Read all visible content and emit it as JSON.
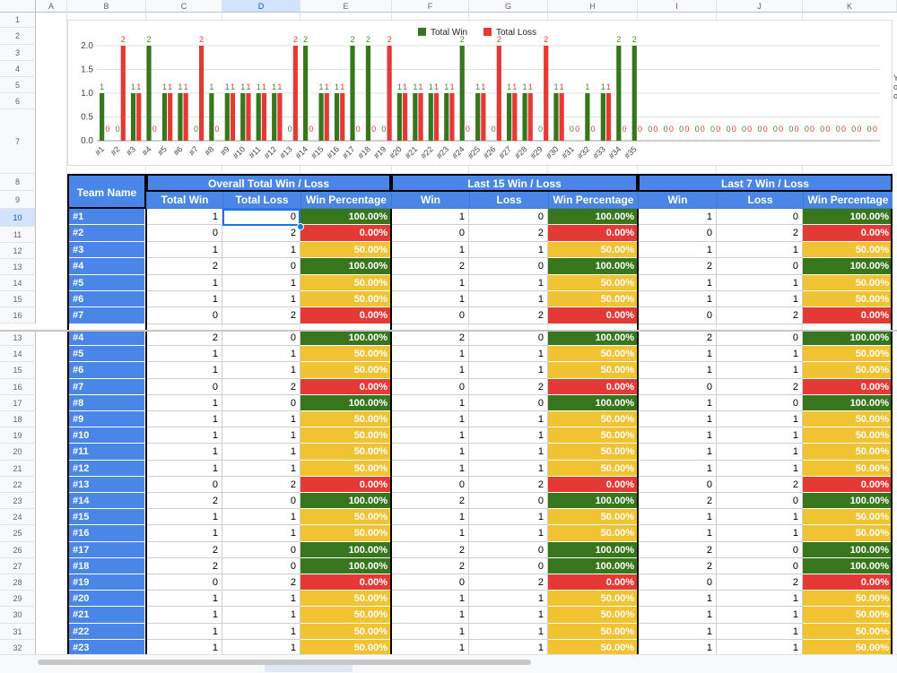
{
  "columns": [
    "A",
    "B",
    "C",
    "D",
    "E",
    "F",
    "G",
    "H",
    "I",
    "J",
    "K"
  ],
  "selected_column": "D",
  "headers": {
    "team_name": "Team Name",
    "group_overall": "Overall Total Win / Loss",
    "group_last15": "Last 15 Win / Loss",
    "group_last7": "Last 7 Win / Loss",
    "total_win": "Total Win",
    "total_loss": "Total Loss",
    "win": "Win",
    "loss": "Loss",
    "win_percentage": "Win Percentage"
  },
  "top_rows": [
    1,
    2,
    3,
    4,
    5,
    6,
    7,
    8,
    9,
    10,
    11,
    12,
    13,
    14,
    15,
    16
  ],
  "bottom_rows": [
    13,
    14,
    15,
    16,
    17,
    18,
    19,
    20,
    21,
    22,
    23,
    24,
    25,
    26,
    27,
    28,
    29,
    30,
    31,
    32
  ],
  "selected_row": 10,
  "colors": {
    "header_blue": "#4a86e8",
    "green": "#38761d",
    "red": "#e53935",
    "yellow": "#f1c232",
    "selection": "#1a73e8"
  },
  "top_rows_data": [
    {
      "team": "#1",
      "w": "1",
      "l": "0",
      "pct": "100.00%",
      "w15": "1",
      "l15": "0",
      "pct15": "100.00%",
      "w7": "1",
      "l7": "0",
      "pct7": "100.00%",
      "s": "g"
    },
    {
      "team": "#2",
      "w": "0",
      "l": "2",
      "pct": "0.00%",
      "w15": "0",
      "l15": "2",
      "pct15": "0.00%",
      "w7": "0",
      "l7": "2",
      "pct7": "0.00%",
      "s": "r"
    },
    {
      "team": "#3",
      "w": "1",
      "l": "1",
      "pct": "50.00%",
      "w15": "1",
      "l15": "1",
      "pct15": "50.00%",
      "w7": "1",
      "l7": "1",
      "pct7": "50.00%",
      "s": "y"
    },
    {
      "team": "#4",
      "w": "2",
      "l": "0",
      "pct": "100.00%",
      "w15": "2",
      "l15": "0",
      "pct15": "100.00%",
      "w7": "2",
      "l7": "0",
      "pct7": "100.00%",
      "s": "g"
    },
    {
      "team": "#5",
      "w": "1",
      "l": "1",
      "pct": "50.00%",
      "w15": "1",
      "l15": "1",
      "pct15": "50.00%",
      "w7": "1",
      "l7": "1",
      "pct7": "50.00%",
      "s": "y"
    },
    {
      "team": "#6",
      "w": "1",
      "l": "1",
      "pct": "50.00%",
      "w15": "1",
      "l15": "1",
      "pct15": "50.00%",
      "w7": "1",
      "l7": "1",
      "pct7": "50.00%",
      "s": "y"
    },
    {
      "team": "#7",
      "w": "0",
      "l": "2",
      "pct": "0.00%",
      "w15": "0",
      "l15": "2",
      "pct15": "0.00%",
      "w7": "0",
      "l7": "2",
      "pct7": "0.00%",
      "s": "r"
    }
  ],
  "bottom_rows_data": [
    {
      "team": "#4",
      "w": "2",
      "l": "0",
      "pct": "100.00%",
      "w15": "2",
      "l15": "0",
      "pct15": "100.00%",
      "w7": "2",
      "l7": "0",
      "pct7": "100.00%",
      "s": "g"
    },
    {
      "team": "#5",
      "w": "1",
      "l": "1",
      "pct": "50.00%",
      "w15": "1",
      "l15": "1",
      "pct15": "50.00%",
      "w7": "1",
      "l7": "1",
      "pct7": "50.00%",
      "s": "y"
    },
    {
      "team": "#6",
      "w": "1",
      "l": "1",
      "pct": "50.00%",
      "w15": "1",
      "l15": "1",
      "pct15": "50.00%",
      "w7": "1",
      "l7": "1",
      "pct7": "50.00%",
      "s": "y"
    },
    {
      "team": "#7",
      "w": "0",
      "l": "2",
      "pct": "0.00%",
      "w15": "0",
      "l15": "2",
      "pct15": "0.00%",
      "w7": "0",
      "l7": "2",
      "pct7": "0.00%",
      "s": "r"
    },
    {
      "team": "#8",
      "w": "1",
      "l": "0",
      "pct": "100.00%",
      "w15": "1",
      "l15": "0",
      "pct15": "100.00%",
      "w7": "1",
      "l7": "0",
      "pct7": "100.00%",
      "s": "g"
    },
    {
      "team": "#9",
      "w": "1",
      "l": "1",
      "pct": "50.00%",
      "w15": "1",
      "l15": "1",
      "pct15": "50.00%",
      "w7": "1",
      "l7": "1",
      "pct7": "50.00%",
      "s": "y"
    },
    {
      "team": "#10",
      "w": "1",
      "l": "1",
      "pct": "50.00%",
      "w15": "1",
      "l15": "1",
      "pct15": "50.00%",
      "w7": "1",
      "l7": "1",
      "pct7": "50.00%",
      "s": "y"
    },
    {
      "team": "#11",
      "w": "1",
      "l": "1",
      "pct": "50.00%",
      "w15": "1",
      "l15": "1",
      "pct15": "50.00%",
      "w7": "1",
      "l7": "1",
      "pct7": "50.00%",
      "s": "y"
    },
    {
      "team": "#12",
      "w": "1",
      "l": "1",
      "pct": "50.00%",
      "w15": "1",
      "l15": "1",
      "pct15": "50.00%",
      "w7": "1",
      "l7": "1",
      "pct7": "50.00%",
      "s": "y"
    },
    {
      "team": "#13",
      "w": "0",
      "l": "2",
      "pct": "0.00%",
      "w15": "0",
      "l15": "2",
      "pct15": "0.00%",
      "w7": "0",
      "l7": "2",
      "pct7": "0.00%",
      "s": "r"
    },
    {
      "team": "#14",
      "w": "2",
      "l": "0",
      "pct": "100.00%",
      "w15": "2",
      "l15": "0",
      "pct15": "100.00%",
      "w7": "2",
      "l7": "0",
      "pct7": "100.00%",
      "s": "g"
    },
    {
      "team": "#15",
      "w": "1",
      "l": "1",
      "pct": "50.00%",
      "w15": "1",
      "l15": "1",
      "pct15": "50.00%",
      "w7": "1",
      "l7": "1",
      "pct7": "50.00%",
      "s": "y"
    },
    {
      "team": "#16",
      "w": "1",
      "l": "1",
      "pct": "50.00%",
      "w15": "1",
      "l15": "1",
      "pct15": "50.00%",
      "w7": "1",
      "l7": "1",
      "pct7": "50.00%",
      "s": "y"
    },
    {
      "team": "#17",
      "w": "2",
      "l": "0",
      "pct": "100.00%",
      "w15": "2",
      "l15": "0",
      "pct15": "100.00%",
      "w7": "2",
      "l7": "0",
      "pct7": "100.00%",
      "s": "g"
    },
    {
      "team": "#18",
      "w": "2",
      "l": "0",
      "pct": "100.00%",
      "w15": "2",
      "l15": "0",
      "pct15": "100.00%",
      "w7": "2",
      "l7": "0",
      "pct7": "100.00%",
      "s": "g"
    },
    {
      "team": "#19",
      "w": "0",
      "l": "2",
      "pct": "0.00%",
      "w15": "0",
      "l15": "2",
      "pct15": "0.00%",
      "w7": "0",
      "l7": "2",
      "pct7": "0.00%",
      "s": "r"
    },
    {
      "team": "#20",
      "w": "1",
      "l": "1",
      "pct": "50.00%",
      "w15": "1",
      "l15": "1",
      "pct15": "50.00%",
      "w7": "1",
      "l7": "1",
      "pct7": "50.00%",
      "s": "y"
    },
    {
      "team": "#21",
      "w": "1",
      "l": "1",
      "pct": "50.00%",
      "w15": "1",
      "l15": "1",
      "pct15": "50.00%",
      "w7": "1",
      "l7": "1",
      "pct7": "50.00%",
      "s": "y"
    },
    {
      "team": "#22",
      "w": "1",
      "l": "1",
      "pct": "50.00%",
      "w15": "1",
      "l15": "1",
      "pct15": "50.00%",
      "w7": "1",
      "l7": "1",
      "pct7": "50.00%",
      "s": "y"
    },
    {
      "team": "#23",
      "w": "1",
      "l": "1",
      "pct": "50.00%",
      "w15": "1",
      "l15": "1",
      "pct15": "50.00%",
      "w7": "1",
      "l7": "1",
      "pct7": "50.00%",
      "s": "y"
    }
  ],
  "chart_data": {
    "type": "bar",
    "title": "",
    "ylim": [
      0,
      2
    ],
    "yticks": [
      "0.0",
      "0.5",
      "1.0",
      "1.5",
      "2.0"
    ],
    "grid": true,
    "legend_position": "top",
    "categories": [
      "#1",
      "#2",
      "#3",
      "#4",
      "#5",
      "#6",
      "#7",
      "#8",
      "#9",
      "#10",
      "#11",
      "#12",
      "#13",
      "#14",
      "#15",
      "#16",
      "#17",
      "#18",
      "#19",
      "#20",
      "#21",
      "#22",
      "#23",
      "#24",
      "#25",
      "#26",
      "#27",
      "#28",
      "#29",
      "#30",
      "#31",
      "#32",
      "#33",
      "#34",
      "#35",
      "",
      "",
      "",
      "",
      "",
      "",
      "",
      "",
      "",
      "",
      "",
      "",
      "",
      "",
      ""
    ],
    "series": [
      {
        "name": "Total Win",
        "color": "#38761d",
        "values": [
          1,
          0,
          1,
          2,
          1,
          1,
          0,
          1,
          1,
          1,
          1,
          1,
          0,
          2,
          1,
          1,
          2,
          2,
          0,
          1,
          1,
          1,
          1,
          2,
          1,
          0,
          1,
          1,
          0,
          1,
          0,
          1,
          1,
          2,
          2,
          0,
          0,
          0,
          0,
          0,
          0,
          0,
          0,
          0,
          0,
          0,
          0,
          0,
          0,
          0
        ]
      },
      {
        "name": "Total Loss",
        "color": "#e53935",
        "values": [
          0,
          2,
          1,
          0,
          1,
          1,
          2,
          0,
          1,
          1,
          1,
          1,
          2,
          0,
          1,
          1,
          0,
          0,
          2,
          1,
          1,
          1,
          1,
          0,
          1,
          2,
          1,
          1,
          2,
          1,
          0,
          0,
          1,
          0,
          0,
          0,
          0,
          0,
          0,
          0,
          0,
          0,
          0,
          0,
          0,
          0,
          0,
          0,
          0,
          0
        ]
      }
    ]
  },
  "edge_text": [
    "Y",
    "o",
    "o"
  ]
}
